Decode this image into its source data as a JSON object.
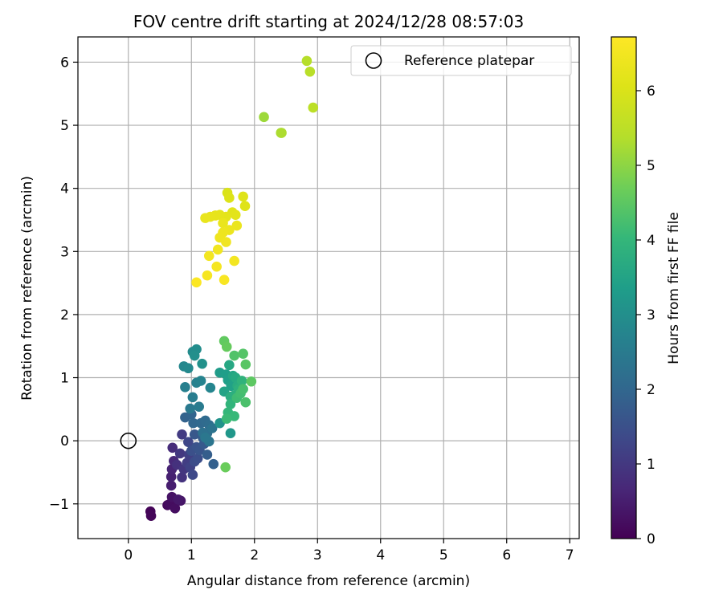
{
  "chart_data": {
    "type": "scatter",
    "title": "FOV centre drift starting at 2024/12/28 08:57:03",
    "xlabel": "Angular distance from reference (arcmin)",
    "ylabel": "Rotation from reference (arcmin)",
    "xlim": [
      -0.8,
      7.15
    ],
    "ylim": [
      -1.55,
      6.4
    ],
    "xticks": [
      0,
      1,
      2,
      3,
      4,
      5,
      6,
      7
    ],
    "yticks": [
      -1,
      0,
      1,
      2,
      3,
      4,
      5,
      6
    ],
    "xtick_labels": [
      "0",
      "1",
      "2",
      "3",
      "4",
      "5",
      "6",
      "7"
    ],
    "ytick_labels": [
      "−1",
      "0",
      "1",
      "2",
      "3",
      "4",
      "5",
      "6"
    ],
    "grid": true,
    "legend": {
      "placement": "top-right",
      "entries": [
        {
          "label": "Reference platepar",
          "marker": "open-circle"
        }
      ]
    },
    "reference_point": {
      "x": 0,
      "y": 0
    },
    "colorbar": {
      "label": "Hours from first FF file",
      "colormap": "viridis",
      "range": [
        0,
        6.72
      ],
      "ticks": [
        0,
        1,
        2,
        3,
        4,
        5,
        6
      ],
      "tick_labels": [
        "0",
        "1",
        "2",
        "3",
        "4",
        "5",
        "6"
      ]
    },
    "points": [
      {
        "x": 0.35,
        "y": -1.12,
        "t": 0.05
      },
      {
        "x": 0.36,
        "y": -1.19,
        "t": 0.08
      },
      {
        "x": 0.62,
        "y": -1.02,
        "t": 0.15
      },
      {
        "x": 0.66,
        "y": -1.0,
        "t": 0.2
      },
      {
        "x": 0.74,
        "y": -1.07,
        "t": 0.22
      },
      {
        "x": 0.69,
        "y": -0.89,
        "t": 0.3
      },
      {
        "x": 0.83,
        "y": -0.95,
        "t": 0.35
      },
      {
        "x": 0.79,
        "y": -0.93,
        "t": 0.4
      },
      {
        "x": 0.68,
        "y": -0.71,
        "t": 0.5
      },
      {
        "x": 0.68,
        "y": -0.57,
        "t": 0.55
      },
      {
        "x": 0.69,
        "y": -0.45,
        "t": 0.6
      },
      {
        "x": 0.72,
        "y": -0.32,
        "t": 0.7
      },
      {
        "x": 0.7,
        "y": -0.11,
        "t": 0.75
      },
      {
        "x": 0.77,
        "y": -0.38,
        "t": 0.85
      },
      {
        "x": 0.85,
        "y": -0.58,
        "t": 0.9
      },
      {
        "x": 0.88,
        "y": -0.45,
        "t": 0.95
      },
      {
        "x": 0.82,
        "y": -0.2,
        "t": 1.0
      },
      {
        "x": 0.85,
        "y": 0.1,
        "t": 1.05
      },
      {
        "x": 0.93,
        "y": -0.35,
        "t": 1.1
      },
      {
        "x": 0.96,
        "y": -0.22,
        "t": 1.15
      },
      {
        "x": 0.98,
        "y": -0.42,
        "t": 1.2
      },
      {
        "x": 0.95,
        "y": -0.02,
        "t": 1.3
      },
      {
        "x": 1.02,
        "y": -0.54,
        "t": 1.35
      },
      {
        "x": 1.05,
        "y": -0.33,
        "t": 1.4
      },
      {
        "x": 1.1,
        "y": -0.28,
        "t": 1.45
      },
      {
        "x": 1.0,
        "y": -0.16,
        "t": 1.5
      },
      {
        "x": 1.08,
        "y": -0.1,
        "t": 1.55
      },
      {
        "x": 1.13,
        "y": -0.15,
        "t": 1.6
      },
      {
        "x": 1.05,
        "y": 0.1,
        "t": 1.65
      },
      {
        "x": 1.2,
        "y": -0.05,
        "t": 1.7
      },
      {
        "x": 1.18,
        "y": 0.05,
        "t": 1.75
      },
      {
        "x": 1.25,
        "y": -0.22,
        "t": 1.8
      },
      {
        "x": 1.35,
        "y": -0.37,
        "t": 1.85
      },
      {
        "x": 0.9,
        "y": 0.37,
        "t": 1.9
      },
      {
        "x": 1.0,
        "y": 0.42,
        "t": 1.95
      },
      {
        "x": 1.03,
        "y": 0.28,
        "t": 2.0
      },
      {
        "x": 1.15,
        "y": 0.28,
        "t": 2.05
      },
      {
        "x": 1.22,
        "y": 0.32,
        "t": 2.1
      },
      {
        "x": 1.28,
        "y": 0.25,
        "t": 2.15
      },
      {
        "x": 1.25,
        "y": 0.12,
        "t": 2.2
      },
      {
        "x": 1.18,
        "y": 0.13,
        "t": 2.25
      },
      {
        "x": 1.33,
        "y": 0.2,
        "t": 2.3
      },
      {
        "x": 1.28,
        "y": -0.01,
        "t": 2.35
      },
      {
        "x": 1.22,
        "y": 0.05,
        "t": 2.4
      },
      {
        "x": 0.98,
        "y": 0.51,
        "t": 2.45
      },
      {
        "x": 1.12,
        "y": 0.54,
        "t": 2.5
      },
      {
        "x": 1.02,
        "y": 0.69,
        "t": 2.55
      },
      {
        "x": 0.9,
        "y": 0.85,
        "t": 2.6
      },
      {
        "x": 1.08,
        "y": 0.92,
        "t": 2.65
      },
      {
        "x": 1.15,
        "y": 0.95,
        "t": 2.7
      },
      {
        "x": 1.3,
        "y": 0.84,
        "t": 2.75
      },
      {
        "x": 0.88,
        "y": 1.18,
        "t": 2.8
      },
      {
        "x": 0.95,
        "y": 1.15,
        "t": 2.85
      },
      {
        "x": 1.02,
        "y": 1.41,
        "t": 2.9
      },
      {
        "x": 1.08,
        "y": 1.45,
        "t": 2.95
      },
      {
        "x": 1.05,
        "y": 1.35,
        "t": 3.0
      },
      {
        "x": 1.17,
        "y": 1.22,
        "t": 3.05
      },
      {
        "x": 1.45,
        "y": 0.28,
        "t": 3.1
      },
      {
        "x": 1.62,
        "y": 0.12,
        "t": 3.2
      },
      {
        "x": 1.45,
        "y": 1.08,
        "t": 3.3
      },
      {
        "x": 1.55,
        "y": 1.05,
        "t": 3.35
      },
      {
        "x": 1.58,
        "y": 0.96,
        "t": 3.4
      },
      {
        "x": 1.63,
        "y": 0.87,
        "t": 3.45
      },
      {
        "x": 1.52,
        "y": 0.78,
        "t": 3.5
      },
      {
        "x": 1.66,
        "y": 1.03,
        "t": 3.55
      },
      {
        "x": 1.6,
        "y": 1.2,
        "t": 3.6
      },
      {
        "x": 1.7,
        "y": 1.0,
        "t": 3.65
      },
      {
        "x": 1.73,
        "y": 0.87,
        "t": 3.7
      },
      {
        "x": 1.62,
        "y": 0.7,
        "t": 3.75
      },
      {
        "x": 1.68,
        "y": 0.72,
        "t": 3.8
      },
      {
        "x": 1.75,
        "y": 0.82,
        "t": 3.85
      },
      {
        "x": 1.8,
        "y": 0.95,
        "t": 3.9
      },
      {
        "x": 1.62,
        "y": 0.58,
        "t": 3.95
      },
      {
        "x": 1.58,
        "y": 0.45,
        "t": 4.0
      },
      {
        "x": 1.68,
        "y": 0.39,
        "t": 4.05
      },
      {
        "x": 1.56,
        "y": 0.35,
        "t": 4.1
      },
      {
        "x": 1.72,
        "y": 0.68,
        "t": 4.15
      },
      {
        "x": 1.78,
        "y": 0.75,
        "t": 4.2
      },
      {
        "x": 1.82,
        "y": 0.82,
        "t": 4.25
      },
      {
        "x": 1.86,
        "y": 0.61,
        "t": 4.3
      },
      {
        "x": 1.68,
        "y": 1.35,
        "t": 4.35
      },
      {
        "x": 1.82,
        "y": 1.38,
        "t": 4.4
      },
      {
        "x": 1.86,
        "y": 1.21,
        "t": 4.45
      },
      {
        "x": 1.95,
        "y": 0.94,
        "t": 4.5
      },
      {
        "x": 1.52,
        "y": 1.58,
        "t": 4.55
      },
      {
        "x": 1.56,
        "y": 1.49,
        "t": 4.6
      },
      {
        "x": 1.54,
        "y": -0.42,
        "t": 4.65
      },
      {
        "x": 2.15,
        "y": 5.13,
        "t": 5.15
      },
      {
        "x": 2.42,
        "y": 4.88,
        "t": 5.25
      },
      {
        "x": 2.43,
        "y": 4.88,
        "t": 5.3
      },
      {
        "x": 2.83,
        "y": 6.02,
        "t": 5.4
      },
      {
        "x": 2.88,
        "y": 5.85,
        "t": 5.45
      },
      {
        "x": 2.93,
        "y": 5.28,
        "t": 5.5
      },
      {
        "x": 1.57,
        "y": 3.93,
        "t": 6.0
      },
      {
        "x": 1.6,
        "y": 3.85,
        "t": 6.05
      },
      {
        "x": 1.82,
        "y": 3.87,
        "t": 6.08
      },
      {
        "x": 1.85,
        "y": 3.72,
        "t": 6.1
      },
      {
        "x": 1.65,
        "y": 3.62,
        "t": 6.15
      },
      {
        "x": 1.7,
        "y": 3.58,
        "t": 6.18
      },
      {
        "x": 1.55,
        "y": 3.55,
        "t": 6.2
      },
      {
        "x": 1.45,
        "y": 3.58,
        "t": 6.22
      },
      {
        "x": 1.38,
        "y": 3.57,
        "t": 6.25
      },
      {
        "x": 1.3,
        "y": 3.55,
        "t": 6.27
      },
      {
        "x": 1.22,
        "y": 3.53,
        "t": 6.3
      },
      {
        "x": 1.5,
        "y": 3.45,
        "t": 6.32
      },
      {
        "x": 1.72,
        "y": 3.41,
        "t": 6.35
      },
      {
        "x": 1.6,
        "y": 3.34,
        "t": 6.37
      },
      {
        "x": 1.5,
        "y": 3.3,
        "t": 6.4
      },
      {
        "x": 1.45,
        "y": 3.22,
        "t": 6.42
      },
      {
        "x": 1.55,
        "y": 3.15,
        "t": 6.45
      },
      {
        "x": 1.42,
        "y": 3.03,
        "t": 6.47
      },
      {
        "x": 1.28,
        "y": 2.93,
        "t": 6.5
      },
      {
        "x": 1.68,
        "y": 2.85,
        "t": 6.52
      },
      {
        "x": 1.4,
        "y": 2.76,
        "t": 6.55
      },
      {
        "x": 1.25,
        "y": 2.62,
        "t": 6.58
      },
      {
        "x": 1.52,
        "y": 2.55,
        "t": 6.62
      },
      {
        "x": 1.08,
        "y": 2.51,
        "t": 6.68
      }
    ]
  }
}
